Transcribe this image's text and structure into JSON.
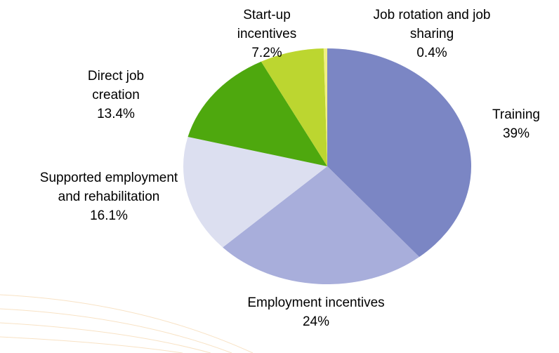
{
  "chart_data": {
    "type": "pie",
    "categories": [
      "Training",
      "Employment incentives",
      "Supported employment and rehabilitation",
      "Direct job creation",
      "Start-up incentives",
      "Job rotation and job sharing"
    ],
    "values": [
      39,
      24,
      16.1,
      13.4,
      7.2,
      0.4
    ],
    "value_labels": [
      "39%",
      "24%",
      "16.1%",
      "13.4%",
      "7.2%",
      "0.4%"
    ],
    "colors": [
      "#7b86c4",
      "#a8aedb",
      "#dcdff0",
      "#4ea80e",
      "#bcd630",
      "#f0f080"
    ]
  }
}
